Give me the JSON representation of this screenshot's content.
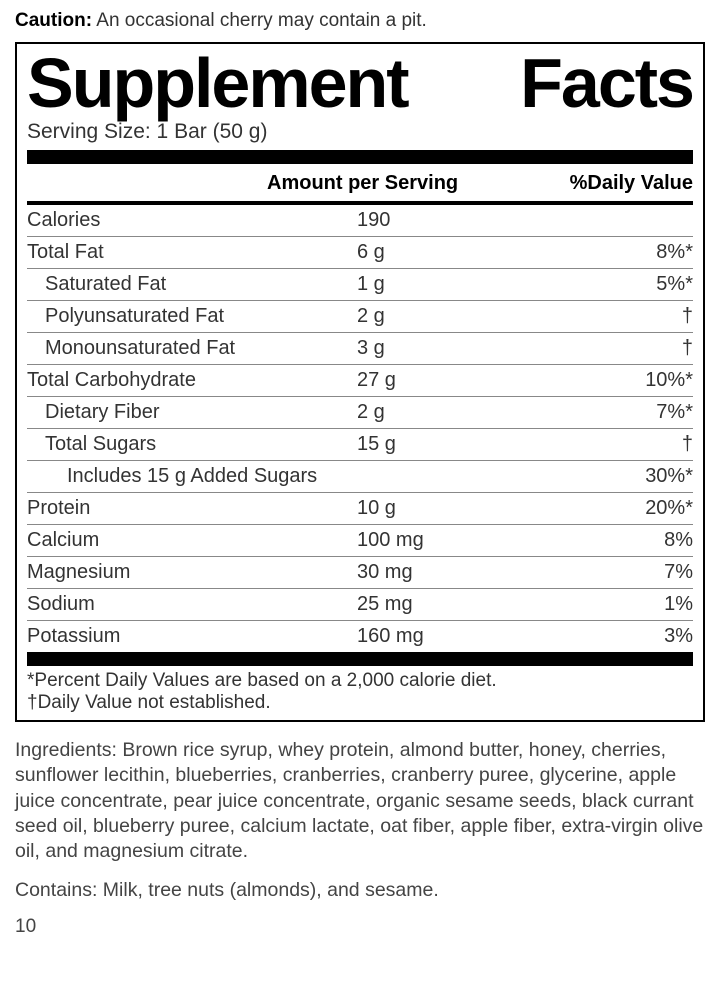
{
  "caution_label": "Caution:",
  "caution_text": "An occasional cherry may contain a pit.",
  "title_left": "Supplement",
  "title_right": "Facts",
  "serving": "Serving Size: 1 Bar (50 g)",
  "header": {
    "c2": "Amount per Serving",
    "c3": "%Daily Value"
  },
  "rows": [
    {
      "label": "Calories",
      "amount": "190",
      "dv": "",
      "indent": 0
    },
    {
      "label": "Total Fat",
      "amount": "6 g",
      "dv": "8%*",
      "indent": 0
    },
    {
      "label": "Saturated Fat",
      "amount": "1 g",
      "dv": "5%*",
      "indent": 1
    },
    {
      "label": "Polyunsaturated Fat",
      "amount": "2 g",
      "dv": "†",
      "indent": 1
    },
    {
      "label": "Monounsaturated Fat",
      "amount": "3 g",
      "dv": "†",
      "indent": 1
    },
    {
      "label": "Total Carbohydrate",
      "amount": "27 g",
      "dv": "10%*",
      "indent": 0
    },
    {
      "label": "Dietary Fiber",
      "amount": "2 g",
      "dv": "7%*",
      "indent": 1
    },
    {
      "label": "Total Sugars",
      "amount": "15 g",
      "dv": "†",
      "indent": 1
    },
    {
      "label": "Includes 15 g Added Sugars",
      "amount": "",
      "dv": "30%*",
      "indent": 2
    },
    {
      "label": "Protein",
      "amount": "10 g",
      "dv": "20%*",
      "indent": 0
    },
    {
      "label": "Calcium",
      "amount": "100 mg",
      "dv": "8%",
      "indent": 0
    },
    {
      "label": "Magnesium",
      "amount": "30 mg",
      "dv": "7%",
      "indent": 0
    },
    {
      "label": "Sodium",
      "amount": "25 mg",
      "dv": "1%",
      "indent": 0
    },
    {
      "label": "Potassium",
      "amount": "160 mg",
      "dv": "3%",
      "indent": 0
    }
  ],
  "footnote1": "*Percent Daily Values are based on a 2,000 calorie diet.",
  "footnote2": "†Daily Value not established.",
  "ingredients": "Ingredients: Brown rice syrup, whey protein, almond butter, honey, cherries, sunflower lecithin, blueberries, cranberries, cranberry puree, glycerine, apple juice concentrate, pear juice concentrate, organic sesame seeds, black currant seed oil, blueberry puree, calcium lactate, oat fiber, apple fiber, extra-virgin olive oil, and magnesium citrate.",
  "contains": "Contains: Milk, tree nuts (almonds), and sesame.",
  "pagenum": "10"
}
